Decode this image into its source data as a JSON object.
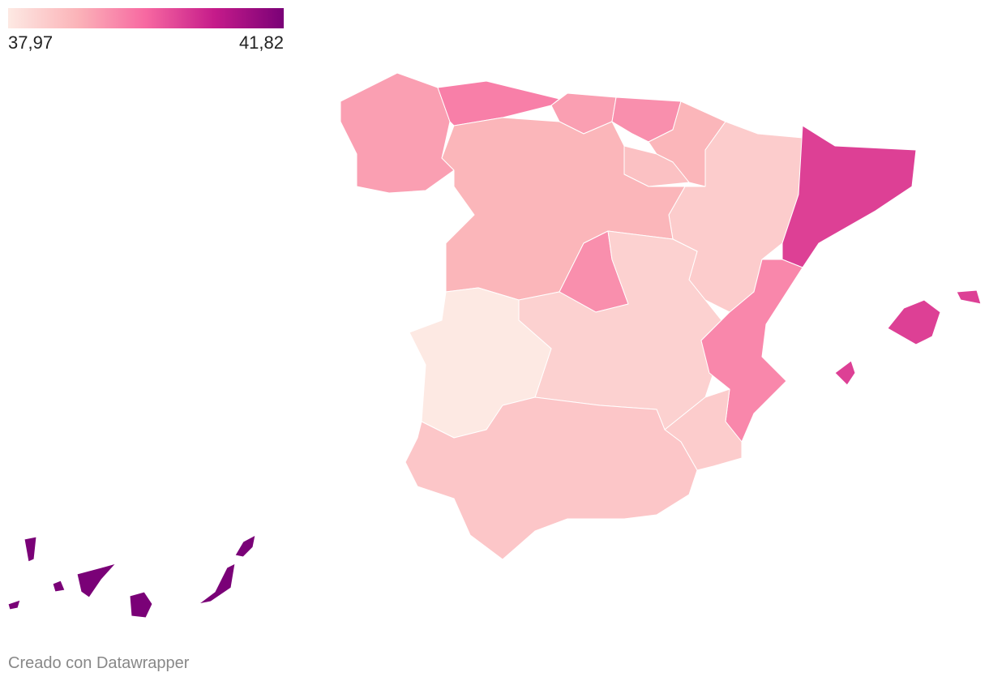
{
  "legend": {
    "min": {
      "value": 37.97,
      "label": "37,97"
    },
    "max": {
      "value": 41.82,
      "label": "41,82"
    },
    "colors": [
      "#fde9e3",
      "#fbb4b9",
      "#f768a1",
      "#c51b8a",
      "#7a0177"
    ]
  },
  "regions": [
    {
      "value": 39.2
    },
    {
      "value": 39.6
    },
    {
      "value": 39.2
    },
    {
      "value": 39.4
    },
    {
      "value": 38.9
    },
    {
      "value": 38.7
    },
    {
      "value": 38.5
    },
    {
      "value": 40.4
    },
    {
      "value": 38.9
    },
    {
      "value": 39.4
    },
    {
      "value": 38.4
    },
    {
      "value": 37.97
    },
    {
      "value": 39.5
    },
    {
      "value": 38.5
    },
    {
      "value": 38.6
    },
    {
      "value": 40.4
    },
    {
      "value": 41.82
    }
  ],
  "footer": "Creado con Datawrapper"
}
